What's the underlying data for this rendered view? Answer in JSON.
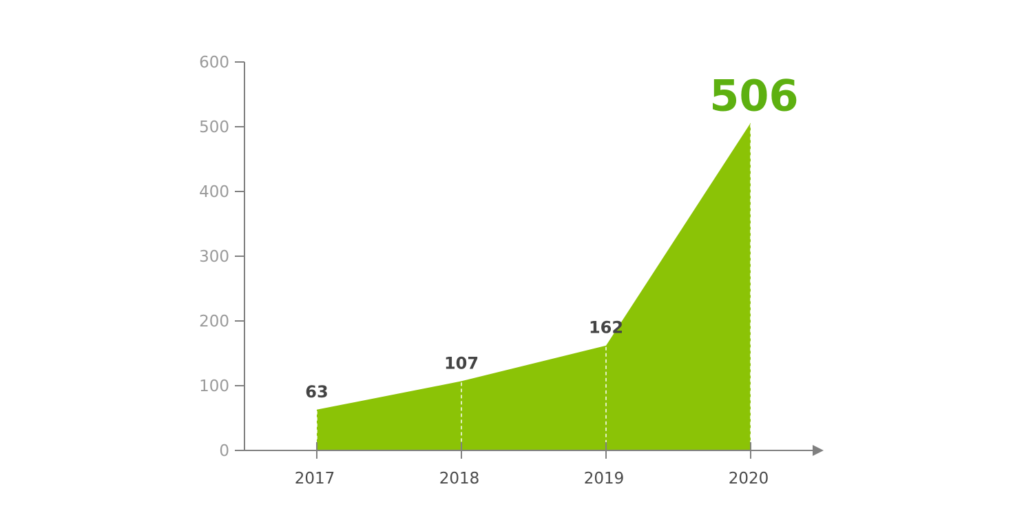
{
  "chart_data": {
    "type": "area",
    "categories": [
      "2017",
      "2018",
      "2019",
      "2020"
    ],
    "values": [
      63,
      107,
      162,
      506
    ],
    "data_labels": [
      "63",
      "107",
      "162",
      "506"
    ],
    "highlight_index": 3,
    "ylim": [
      0,
      600
    ],
    "yticks": [
      0,
      100,
      200,
      300,
      400,
      500,
      600
    ],
    "ytick_labels": [
      "0",
      "100",
      "200",
      "300",
      "400",
      "500",
      "600"
    ],
    "grid": false,
    "title": "",
    "xlabel": "",
    "ylabel": "",
    "colors": {
      "fill": "#8bc306",
      "highlight_label": "#5db010",
      "axis": "#808080",
      "ytick_text": "#9a9a9a",
      "xtick_text": "#4a4a4a",
      "data_label_text": "#444444",
      "dashed_line": "#ffffff"
    }
  }
}
